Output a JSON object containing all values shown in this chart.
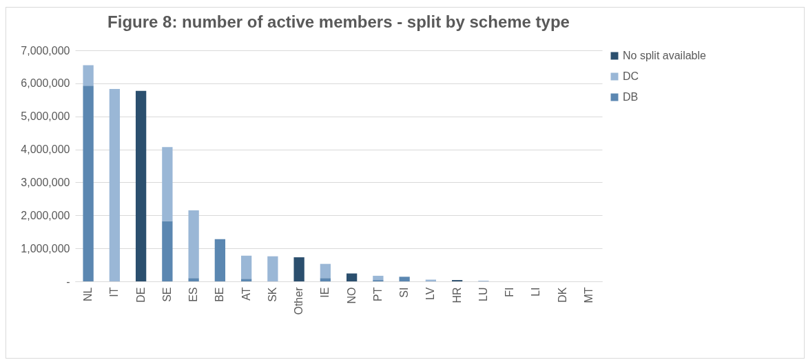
{
  "chart_data": {
    "type": "bar",
    "title": "Figure 8: number of active members - split by scheme type",
    "categories": [
      "NL",
      "IT",
      "DE",
      "SE",
      "ES",
      "BE",
      "AT",
      "SK",
      "Other",
      "IE",
      "NO",
      "PT",
      "SI",
      "LV",
      "HR",
      "LU",
      "FI",
      "LI",
      "DK",
      "MT"
    ],
    "series": [
      {
        "name": "DB",
        "color": "#5b87b1",
        "values": [
          5930000,
          0,
          0,
          1830000,
          100000,
          1280000,
          80000,
          0,
          0,
          100000,
          0,
          40000,
          140000,
          0,
          0,
          0,
          0,
          0,
          0,
          0
        ]
      },
      {
        "name": "DC",
        "color": "#9ab7d6",
        "values": [
          620000,
          5830000,
          0,
          2240000,
          2050000,
          0,
          700000,
          760000,
          0,
          430000,
          0,
          130000,
          0,
          50000,
          0,
          20000,
          0,
          0,
          0,
          0
        ]
      },
      {
        "name": "No split available",
        "color": "#2b4f6e",
        "values": [
          0,
          0,
          5770000,
          0,
          0,
          0,
          0,
          0,
          730000,
          0,
          240000,
          0,
          0,
          0,
          40000,
          0,
          0,
          0,
          0,
          0
        ]
      }
    ],
    "stacked": true,
    "ylim": [
      0,
      7000000
    ],
    "yticks": [
      {
        "value": 0,
        "label": "-"
      },
      {
        "value": 1000000,
        "label": "1,000,000"
      },
      {
        "value": 2000000,
        "label": "2,000,000"
      },
      {
        "value": 3000000,
        "label": "3,000,000"
      },
      {
        "value": 4000000,
        "label": "4,000,000"
      },
      {
        "value": 5000000,
        "label": "5,000,000"
      },
      {
        "value": 6000000,
        "label": "6,000,000"
      },
      {
        "value": 7000000,
        "label": "7,000,000"
      }
    ],
    "grid": "y",
    "legend": "right"
  }
}
